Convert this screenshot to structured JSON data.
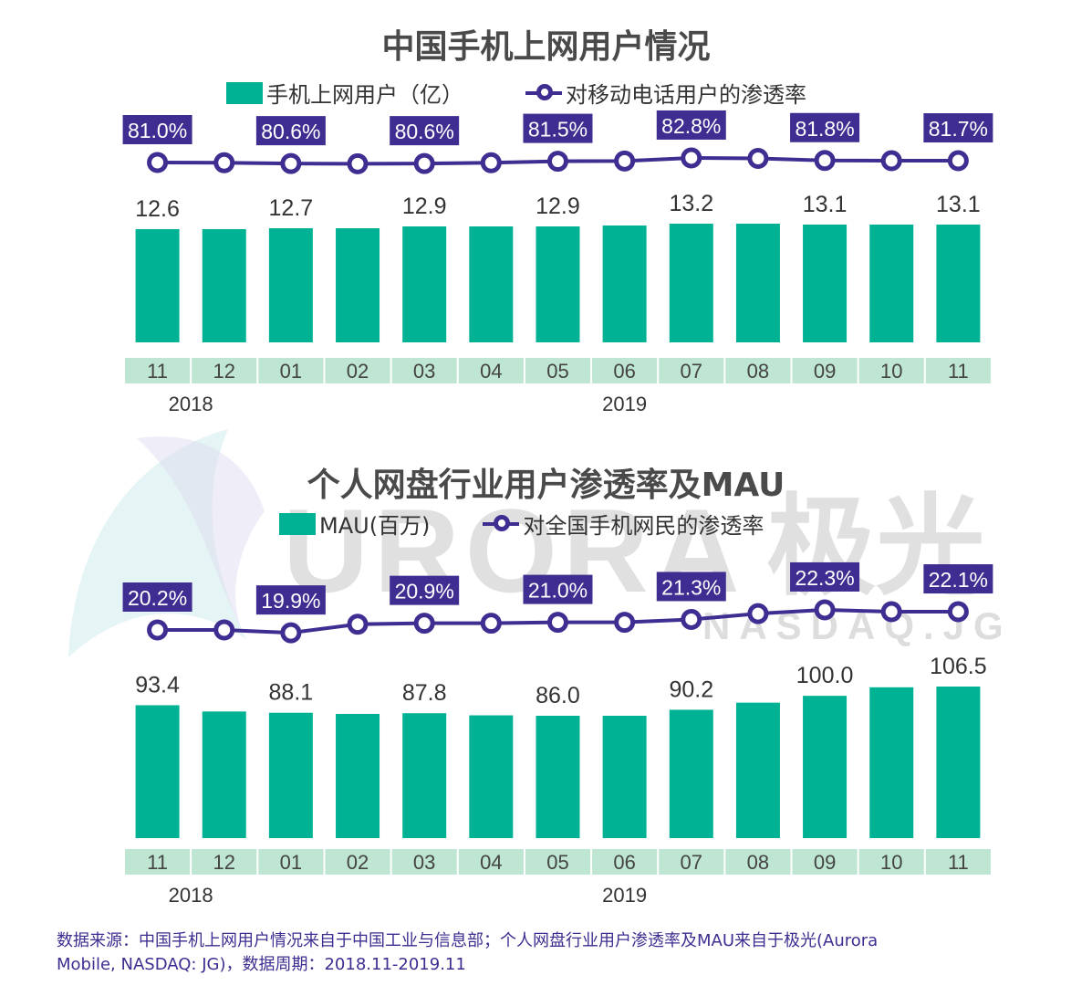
{
  "colors": {
    "bar": "#00b294",
    "line": "#3f2d91",
    "axis_cell": "#bfe6d2",
    "title": "#4a4a4a",
    "label": "#333333"
  },
  "watermark": {
    "text": "URORA",
    "cn": "极光",
    "sub": "NASDAQ.JG"
  },
  "chart_data": [
    {
      "type": "bar+line",
      "title": "中国手机上网用户情况",
      "legend": [
        "手机上网用户（亿）",
        "对移动电话用户的渗透率"
      ],
      "categories": [
        "11",
        "12",
        "01",
        "02",
        "03",
        "04",
        "05",
        "06",
        "07",
        "08",
        "09",
        "10",
        "11"
      ],
      "year_labels": [
        {
          "label": "2018",
          "at": 1
        },
        {
          "label": "2019",
          "at": 7.5
        }
      ],
      "series": [
        {
          "name": "手机上网用户（亿）",
          "type": "bar",
          "values": [
            12.6,
            12.6,
            12.7,
            12.7,
            12.9,
            12.9,
            12.9,
            13.0,
            13.2,
            13.2,
            13.1,
            13.1,
            13.1
          ],
          "labels": [
            "12.6",
            "",
            "12.7",
            "",
            "12.9",
            "",
            "12.9",
            "",
            "13.2",
            "",
            "13.1",
            "",
            "13.1"
          ]
        },
        {
          "name": "对移动电话用户的渗透率",
          "type": "line",
          "values": [
            81.0,
            80.9,
            80.6,
            80.5,
            80.6,
            80.9,
            81.5,
            81.6,
            82.8,
            82.6,
            81.8,
            81.7,
            81.7
          ],
          "labels": [
            "81.0%",
            "",
            "80.6%",
            "",
            "80.6%",
            "",
            "81.5%",
            "",
            "82.8%",
            "",
            "81.8%",
            "",
            "81.7%"
          ]
        }
      ]
    },
    {
      "type": "bar+line",
      "title": "个人网盘行业用户渗透率及MAU",
      "legend": [
        "MAU(百万)",
        "对全国手机网民的渗透率"
      ],
      "categories": [
        "11",
        "12",
        "01",
        "02",
        "03",
        "04",
        "05",
        "06",
        "07",
        "08",
        "09",
        "10",
        "11"
      ],
      "year_labels": [
        {
          "label": "2018",
          "at": 1
        },
        {
          "label": "2019",
          "at": 7.5
        }
      ],
      "series": [
        {
          "name": "MAU(百万)",
          "type": "bar",
          "values": [
            93.4,
            89.0,
            88.1,
            87.3,
            87.8,
            86.3,
            86.0,
            86.0,
            90.2,
            95.2,
            100.0,
            106.0,
            106.5
          ],
          "labels": [
            "93.4",
            "",
            "88.1",
            "",
            "87.8",
            "",
            "86.0",
            "",
            "90.2",
            "",
            "100.0",
            "",
            "106.5"
          ]
        },
        {
          "name": "对全国手机网民的渗透率",
          "type": "line",
          "values": [
            20.2,
            20.2,
            19.9,
            20.8,
            20.9,
            20.9,
            21.0,
            21.0,
            21.3,
            21.9,
            22.3,
            22.1,
            22.1
          ],
          "labels": [
            "20.2%",
            "",
            "19.9%",
            "",
            "20.9%",
            "",
            "21.0%",
            "",
            "21.3%",
            "",
            "22.3%",
            "",
            "22.1%"
          ]
        }
      ]
    }
  ],
  "source": {
    "line1": "数据来源：中国手机上网用户情况来自于中国工业与信息部；个人网盘行业用户渗透率及MAU来自于极光(Aurora",
    "line2": "Mobile, NASDAQ: JG)，数据周期：2018.11-2019.11"
  }
}
